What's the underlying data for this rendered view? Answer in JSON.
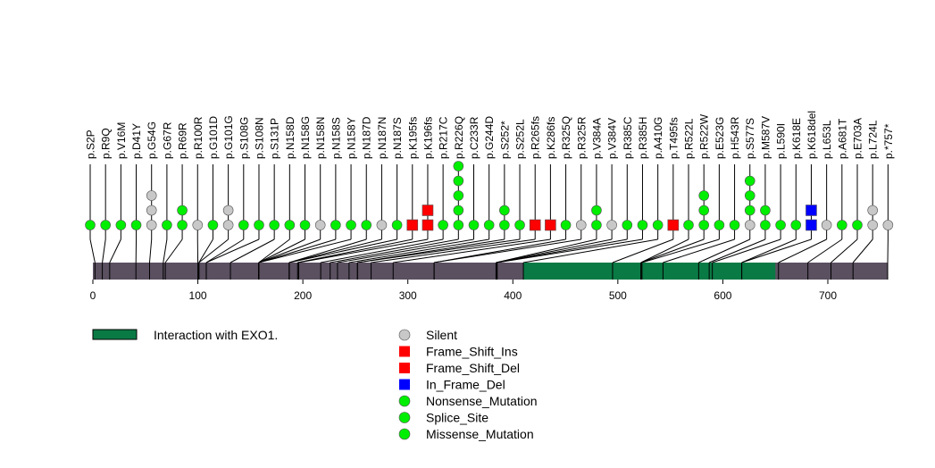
{
  "chart_data": {
    "type": "lollipop",
    "protein_length": 757,
    "x_range": [
      0,
      757
    ],
    "x_ticks": [
      0,
      100,
      200,
      300,
      400,
      500,
      600,
      700
    ],
    "domains": [
      {
        "name": "Interaction with EXO1.",
        "start": 410,
        "end": 650
      }
    ],
    "domain_legend_label": "Interaction with EXO1.",
    "colors": {
      "backbone": "#5a5060",
      "domain": "#0a7a45",
      "Silent": "#c8c8c8",
      "Frame_Shift_Ins": "#ff0000",
      "Frame_Shift_Del": "#ff0000",
      "In_Frame_Del": "#0000ff",
      "Nonsense_Mutation": "#00ee00",
      "Splice_Site": "#00ee00",
      "Missense_Mutation": "#00ee00"
    },
    "legend": [
      {
        "label": "Silent",
        "shape": "circle",
        "type": "Silent"
      },
      {
        "label": "Frame_Shift_Ins",
        "shape": "square",
        "type": "Frame_Shift_Ins"
      },
      {
        "label": "Frame_Shift_Del",
        "shape": "square",
        "type": "Frame_Shift_Del"
      },
      {
        "label": "In_Frame_Del",
        "shape": "square",
        "type": "In_Frame_Del"
      },
      {
        "label": "Nonsense_Mutation",
        "shape": "circle",
        "type": "Nonsense_Mutation"
      },
      {
        "label": "Splice_Site",
        "shape": "circle",
        "type": "Splice_Site"
      },
      {
        "label": "Missense_Mutation",
        "shape": "circle",
        "type": "Missense_Mutation"
      }
    ],
    "mutations": [
      {
        "label": "p.S2P",
        "position": 2,
        "markers": [
          "Missense_Mutation"
        ]
      },
      {
        "label": "p.R9Q",
        "position": 9,
        "markers": [
          "Missense_Mutation"
        ]
      },
      {
        "label": "p.V16M",
        "position": 16,
        "markers": [
          "Missense_Mutation"
        ]
      },
      {
        "label": "p.D41Y",
        "position": 41,
        "markers": [
          "Missense_Mutation"
        ]
      },
      {
        "label": "p.G54G",
        "position": 54,
        "markers": [
          "Silent",
          "Silent",
          "Silent"
        ]
      },
      {
        "label": "p.G67R",
        "position": 67,
        "markers": [
          "Missense_Mutation"
        ]
      },
      {
        "label": "p.R69R",
        "position": 69,
        "markers": [
          "Missense_Mutation",
          "Missense_Mutation"
        ]
      },
      {
        "label": "p.R100R",
        "position": 100,
        "markers": [
          "Silent"
        ]
      },
      {
        "label": "p.G101D",
        "position": 101,
        "markers": [
          "Missense_Mutation"
        ]
      },
      {
        "label": "p.G101G",
        "position": 101,
        "markers": [
          "Silent",
          "Silent"
        ]
      },
      {
        "label": "p.S108G",
        "position": 108,
        "markers": [
          "Missense_Mutation"
        ]
      },
      {
        "label": "p.S108N",
        "position": 108,
        "markers": [
          "Missense_Mutation"
        ]
      },
      {
        "label": "p.S131P",
        "position": 131,
        "markers": [
          "Missense_Mutation"
        ]
      },
      {
        "label": "p.N158D",
        "position": 158,
        "markers": [
          "Missense_Mutation"
        ]
      },
      {
        "label": "p.N158G",
        "position": 158,
        "markers": [
          "Missense_Mutation"
        ]
      },
      {
        "label": "p.N158N",
        "position": 158,
        "markers": [
          "Silent"
        ]
      },
      {
        "label": "p.N158S",
        "position": 158,
        "markers": [
          "Missense_Mutation"
        ]
      },
      {
        "label": "p.N158Y",
        "position": 158,
        "markers": [
          "Missense_Mutation"
        ]
      },
      {
        "label": "p.N187D",
        "position": 187,
        "markers": [
          "Missense_Mutation"
        ]
      },
      {
        "label": "p.N187N",
        "position": 187,
        "markers": [
          "Silent"
        ]
      },
      {
        "label": "p.N187S",
        "position": 187,
        "markers": [
          "Missense_Mutation"
        ]
      },
      {
        "label": "p.K195fs",
        "position": 195,
        "markers": [
          "Frame_Shift_Del"
        ]
      },
      {
        "label": "p.K196fs",
        "position": 196,
        "markers": [
          "Frame_Shift_Del",
          "Frame_Shift_Ins"
        ]
      },
      {
        "label": "p.R217C",
        "position": 217,
        "markers": [
          "Missense_Mutation"
        ]
      },
      {
        "label": "p.R226Q",
        "position": 226,
        "markers": [
          "Missense_Mutation",
          "Missense_Mutation",
          "Missense_Mutation",
          "Missense_Mutation",
          "Missense_Mutation"
        ]
      },
      {
        "label": "p.C233R",
        "position": 233,
        "markers": [
          "Missense_Mutation"
        ]
      },
      {
        "label": "p.G244D",
        "position": 244,
        "markers": [
          "Missense_Mutation"
        ]
      },
      {
        "label": "p.S252*",
        "position": 252,
        "markers": [
          "Nonsense_Mutation",
          "Nonsense_Mutation"
        ]
      },
      {
        "label": "p.S252L",
        "position": 252,
        "markers": [
          "Missense_Mutation"
        ]
      },
      {
        "label": "p.R265fs",
        "position": 265,
        "markers": [
          "Frame_Shift_Del"
        ]
      },
      {
        "label": "p.K286fs",
        "position": 286,
        "markers": [
          "Frame_Shift_Del"
        ]
      },
      {
        "label": "p.R325Q",
        "position": 325,
        "markers": [
          "Missense_Mutation"
        ]
      },
      {
        "label": "p.R325R",
        "position": 325,
        "markers": [
          "Silent"
        ]
      },
      {
        "label": "p.V384A",
        "position": 384,
        "markers": [
          "Missense_Mutation",
          "Missense_Mutation"
        ]
      },
      {
        "label": "p.V384V",
        "position": 384,
        "markers": [
          "Silent"
        ]
      },
      {
        "label": "p.R385C",
        "position": 385,
        "markers": [
          "Missense_Mutation"
        ]
      },
      {
        "label": "p.R385H",
        "position": 385,
        "markers": [
          "Missense_Mutation"
        ]
      },
      {
        "label": "p.A410G",
        "position": 410,
        "markers": [
          "Missense_Mutation"
        ]
      },
      {
        "label": "p.T495fs",
        "position": 495,
        "markers": [
          "Frame_Shift_Del"
        ]
      },
      {
        "label": "p.R522L",
        "position": 522,
        "markers": [
          "Missense_Mutation"
        ]
      },
      {
        "label": "p.R522W",
        "position": 522,
        "markers": [
          "Missense_Mutation",
          "Missense_Mutation",
          "Missense_Mutation"
        ]
      },
      {
        "label": "p.E523G",
        "position": 523,
        "markers": [
          "Missense_Mutation"
        ]
      },
      {
        "label": "p.H543R",
        "position": 543,
        "markers": [
          "Missense_Mutation"
        ]
      },
      {
        "label": "p.S577S",
        "position": 577,
        "markers": [
          "Silent",
          "Missense_Mutation",
          "Missense_Mutation",
          "Missense_Mutation"
        ]
      },
      {
        "label": "p.M587V",
        "position": 587,
        "markers": [
          "Missense_Mutation",
          "Missense_Mutation"
        ]
      },
      {
        "label": "p.L590I",
        "position": 590,
        "markers": [
          "Missense_Mutation"
        ]
      },
      {
        "label": "p.K618E",
        "position": 618,
        "markers": [
          "Missense_Mutation"
        ]
      },
      {
        "label": "p.K618del",
        "position": 618,
        "markers": [
          "In_Frame_Del",
          "In_Frame_Del"
        ]
      },
      {
        "label": "p.L653L",
        "position": 653,
        "markers": [
          "Silent"
        ]
      },
      {
        "label": "p.A681T",
        "position": 681,
        "markers": [
          "Missense_Mutation"
        ]
      },
      {
        "label": "p.E703A",
        "position": 703,
        "markers": [
          "Missense_Mutation"
        ]
      },
      {
        "label": "p.L724L",
        "position": 724,
        "markers": [
          "Silent",
          "Silent"
        ]
      },
      {
        "label": "p.*757*",
        "position": 757,
        "markers": [
          "Silent"
        ]
      }
    ]
  }
}
